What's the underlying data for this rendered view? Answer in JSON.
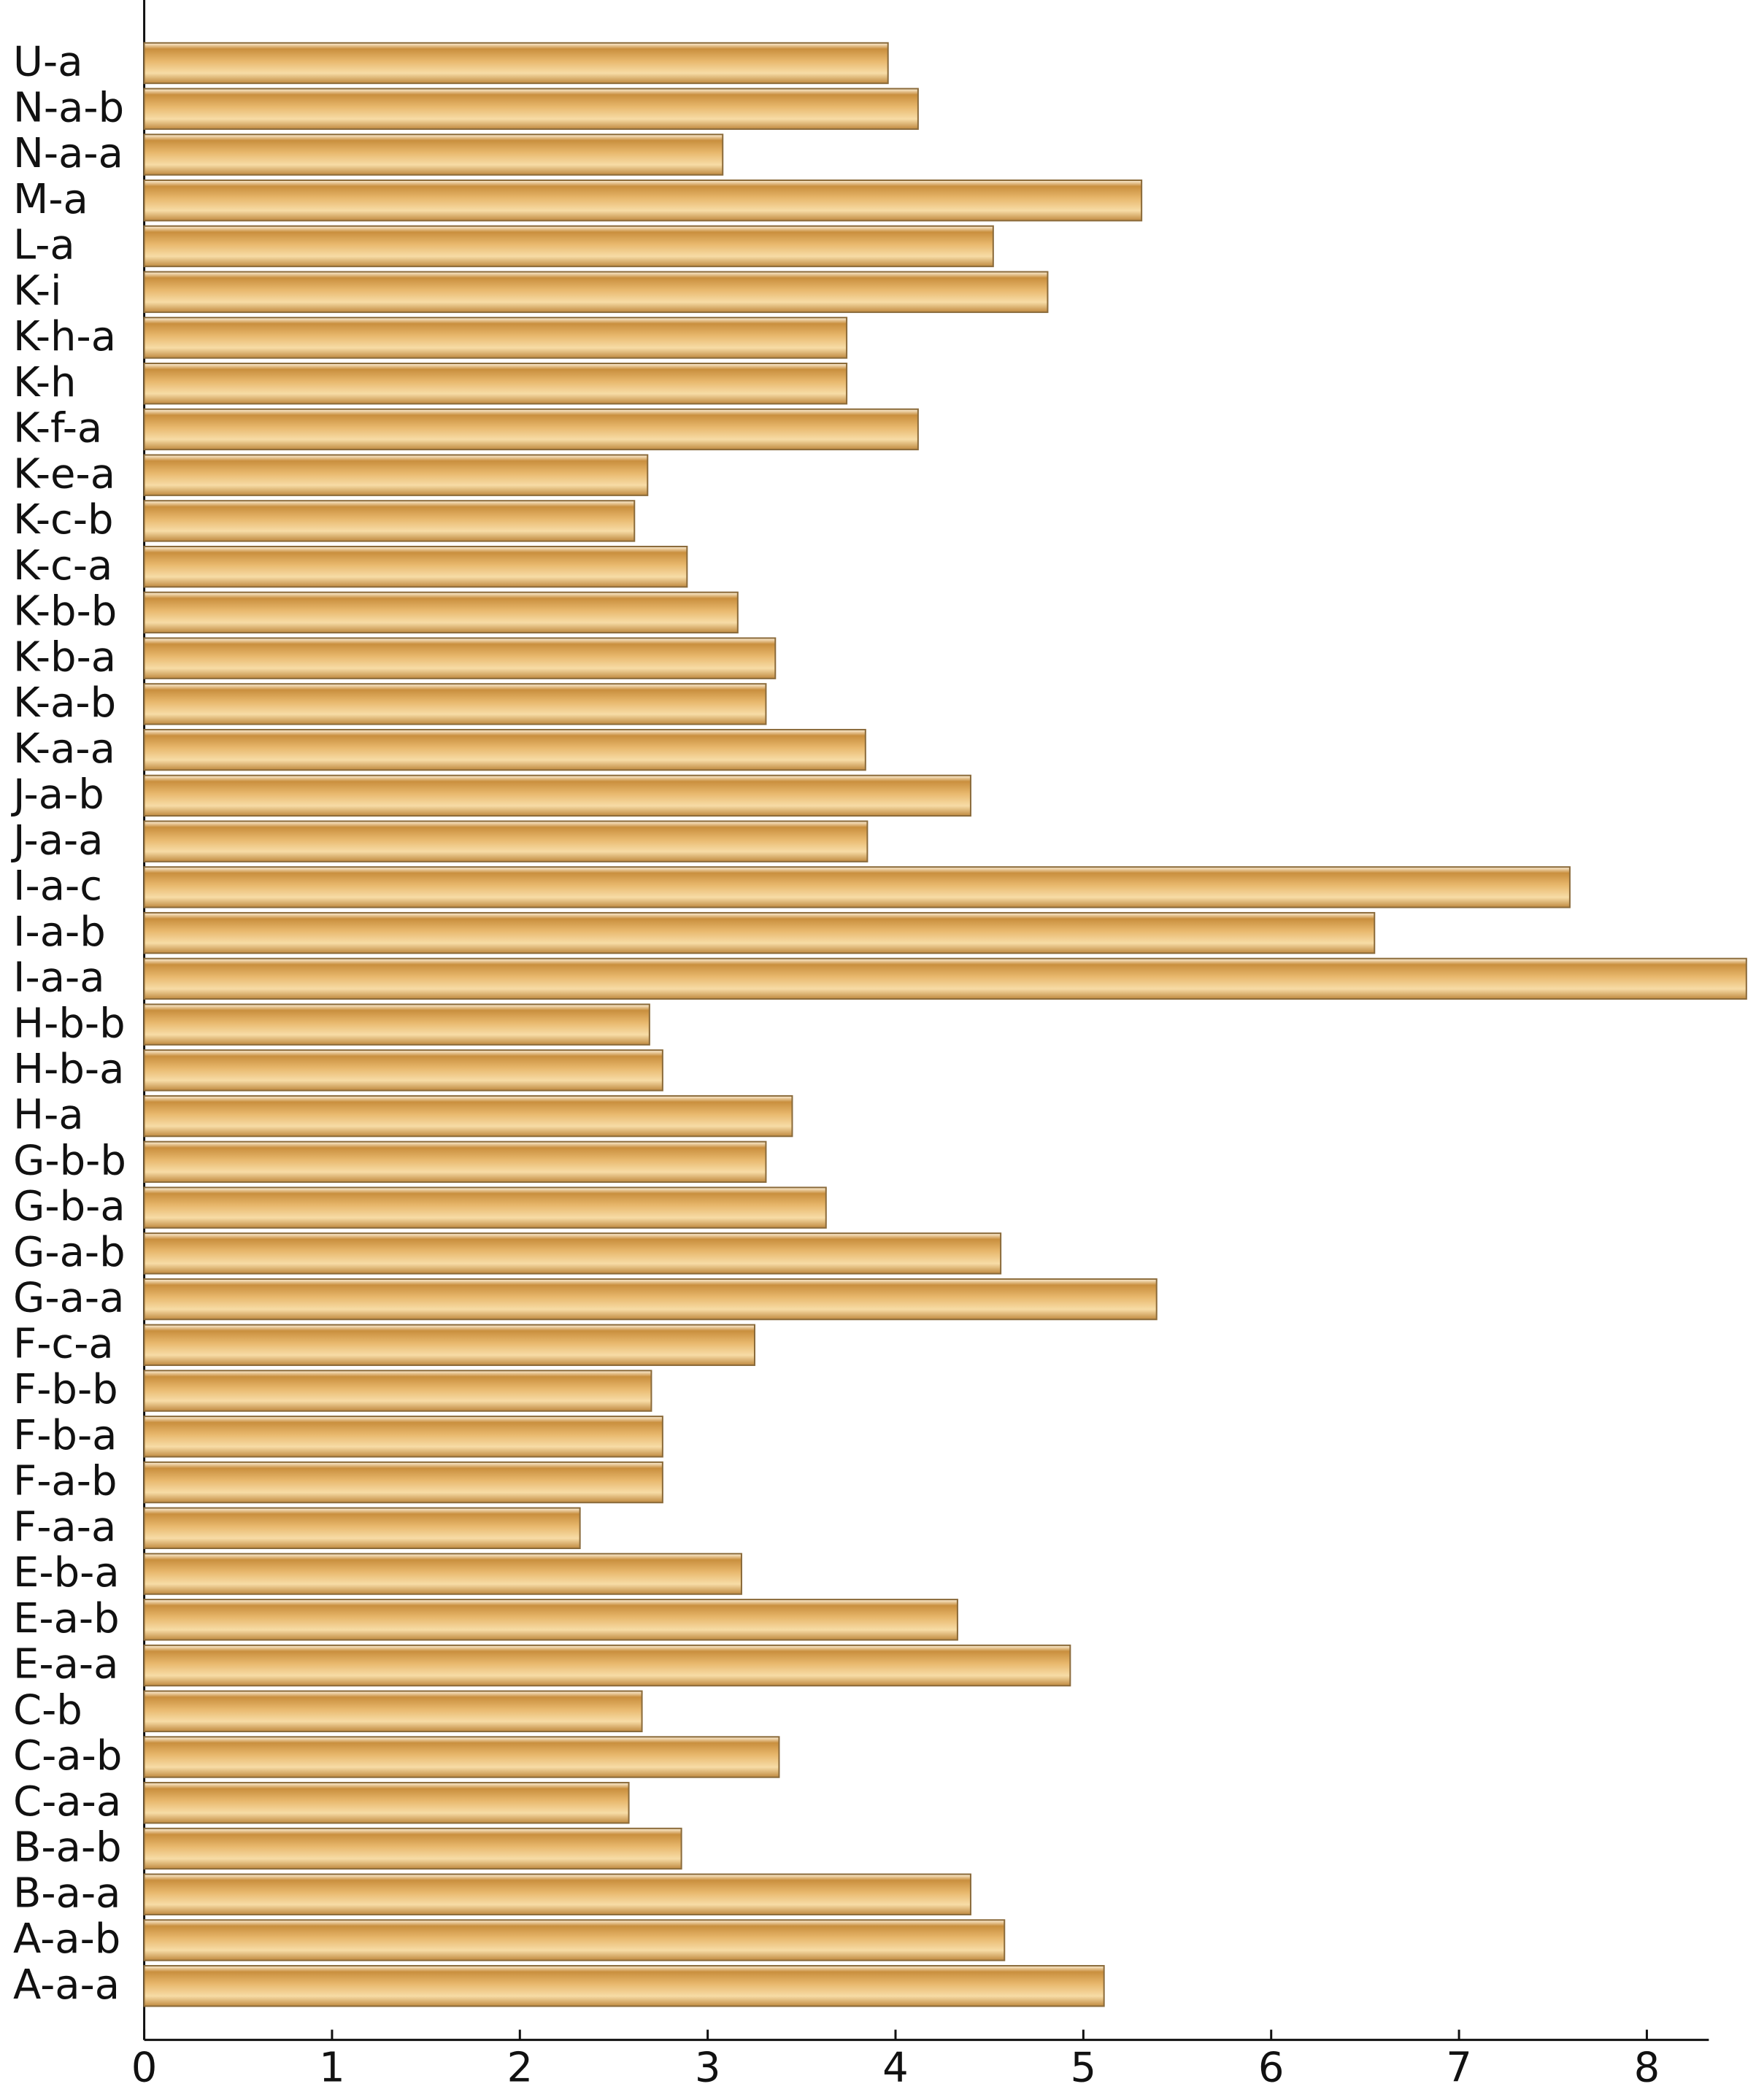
{
  "chart_data": {
    "type": "bar",
    "orientation": "horizontal",
    "categories": [
      "A-a-a",
      "A-a-b",
      "B-a-a",
      "B-a-b",
      "C-a-a",
      "C-a-b",
      "C-b",
      "E-a-a",
      "E-a-b",
      "E-b-a",
      "F-a-a",
      "F-a-b",
      "F-b-a",
      "F-b-b",
      "F-c-a",
      "G-a-a",
      "G-a-b",
      "G-b-a",
      "G-b-b",
      "H-a",
      "H-b-a",
      "H-b-b",
      "I-a-a",
      "I-a-b",
      "I-a-c",
      "J-a-a",
      "J-a-b",
      "K-a-a",
      "K-a-b",
      "K-b-a",
      "K-b-b",
      "K-c-a",
      "K-c-b",
      "K-e-a",
      "K-f-a",
      "K-h",
      "K-h-a",
      "K-i",
      "L-a",
      "M-a",
      "N-a-a",
      "N-a-b",
      "U-a"
    ],
    "values": [
      5.11,
      4.58,
      4.4,
      2.86,
      2.58,
      3.38,
      2.65,
      4.93,
      4.33,
      3.18,
      2.32,
      2.76,
      2.76,
      2.7,
      3.25,
      5.39,
      4.56,
      3.63,
      3.31,
      3.45,
      2.76,
      2.69,
      8.53,
      6.55,
      7.59,
      3.85,
      4.4,
      3.84,
      3.31,
      3.36,
      3.16,
      2.89,
      2.61,
      2.68,
      4.12,
      3.74,
      3.74,
      4.81,
      4.52,
      5.31,
      3.08,
      4.12,
      3.96
    ],
    "color": "#e8b86d",
    "xlim": [
      0,
      8.33
    ],
    "xticks": [
      0,
      1,
      2,
      3,
      4,
      5,
      6,
      7,
      8
    ],
    "grid": false
  }
}
